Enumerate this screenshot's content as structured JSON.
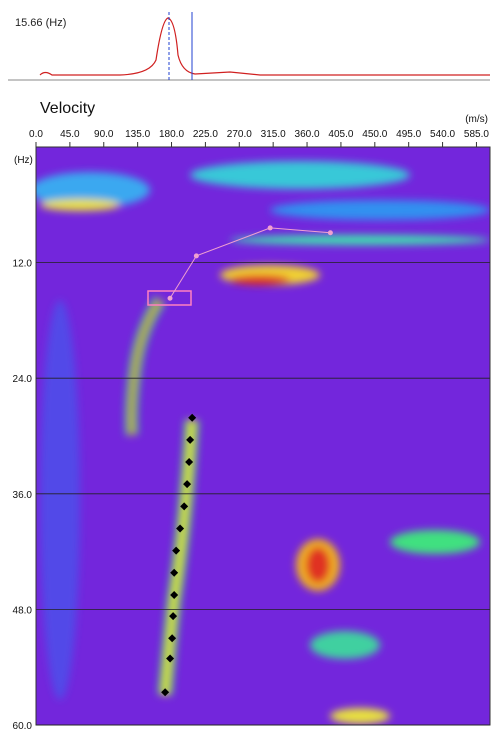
{
  "peak_label": "15.66 (Hz)",
  "chart_data": {
    "type": "scatter",
    "title": "Velocity",
    "x_label": "(m/s)",
    "y_label": "(Hz)",
    "xlim": [
      0,
      603
    ],
    "ylim": [
      0,
      60
    ],
    "y_inverted": true,
    "grid": true,
    "xticks": [
      {
        "value": 0,
        "label": "0.0"
      },
      {
        "value": 45,
        "label": "45.0"
      },
      {
        "value": 90,
        "label": "90.0"
      },
      {
        "value": 135,
        "label": "135.0"
      },
      {
        "value": 180,
        "label": "180.0"
      },
      {
        "value": 225,
        "label": "225.0"
      },
      {
        "value": 270,
        "label": "270.0"
      },
      {
        "value": 315,
        "label": "315.0"
      },
      {
        "value": 360,
        "label": "360.0"
      },
      {
        "value": 405,
        "label": "405.0"
      },
      {
        "value": 450,
        "label": "450.0"
      },
      {
        "value": 495,
        "label": "495.0"
      },
      {
        "value": 540,
        "label": "540.0"
      },
      {
        "value": 585,
        "label": "585.0"
      }
    ],
    "yticks": [
      {
        "value": 12,
        "label": "12.0"
      },
      {
        "value": 24,
        "label": "24.0"
      },
      {
        "value": 36,
        "label": "36.0"
      },
      {
        "value": 48,
        "label": "48.0"
      },
      {
        "value": 60,
        "label": "60.0"
      }
    ],
    "series": [
      {
        "color": "#000000",
        "x": [
          207.4,
          204.7,
          203.4,
          200.7,
          196.8,
          191.4,
          186.1,
          183.5,
          183.5,
          182.1,
          180.8,
          178.1,
          171.5
        ],
        "values": [
          28.1,
          30.4,
          32.7,
          35.0,
          37.3,
          39.6,
          41.9,
          44.2,
          46.5,
          48.7,
          51.0,
          53.1,
          56.6
        ]
      },
      {
        "color": "#f0a0d0",
        "x": [
          391,
          311,
          213,
          178
        ],
        "values": [
          8.9,
          8.4,
          11.3,
          15.7
        ]
      }
    ]
  }
}
